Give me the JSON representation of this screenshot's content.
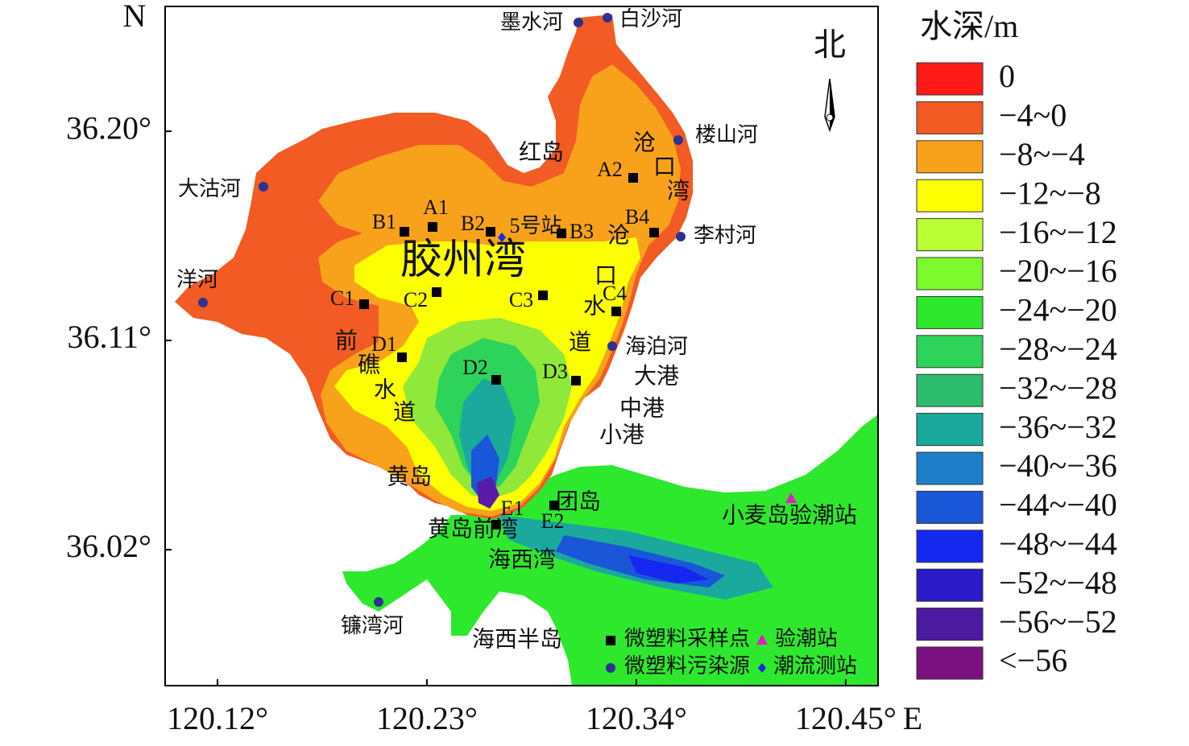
{
  "axes": {
    "x_label": "E",
    "y_label": "N",
    "xlim": [
      120.0925,
      120.467
    ],
    "ylim": [
      35.9615,
      36.2537
    ],
    "xticks": [
      {
        "value": 120.12,
        "label": "120.12°"
      },
      {
        "value": 120.23,
        "label": "120.23°"
      },
      {
        "value": 120.34,
        "label": "120.34°"
      },
      {
        "value": 120.45,
        "label": "120.45°"
      }
    ],
    "yticks": [
      {
        "value": 36.2,
        "label": "36.20°"
      },
      {
        "value": 36.11,
        "label": "36.11°"
      },
      {
        "value": 36.02,
        "label": "36.02°"
      }
    ]
  },
  "legend": {
    "title": "水深/m",
    "items": [
      {
        "label": "0",
        "color": "#ff1a1a"
      },
      {
        "label": "−4~0",
        "color": "#f25b23"
      },
      {
        "label": "−8~−4",
        "color": "#f8a21c"
      },
      {
        "label": "−12~−8",
        "color": "#fcff00"
      },
      {
        "label": "−16~−12",
        "color": "#baff33"
      },
      {
        "label": "−20~−16",
        "color": "#7cfa2c"
      },
      {
        "label": "−24~−20",
        "color": "#2ee82e"
      },
      {
        "label": "−28~−24",
        "color": "#2ed35a"
      },
      {
        "label": "−32~−28",
        "color": "#2dbb6e"
      },
      {
        "label": "−36~−32",
        "color": "#1aa99c"
      },
      {
        "label": "−40~−36",
        "color": "#1e7fc8"
      },
      {
        "label": "−44~−40",
        "color": "#1a56d8"
      },
      {
        "label": "−48~−44",
        "color": "#1428f0"
      },
      {
        "label": "−52~−48",
        "color": "#2a1ac8"
      },
      {
        "label": "−56~−52",
        "color": "#4a1aa0"
      },
      {
        "label": "<−56",
        "color": "#7b1080"
      }
    ]
  },
  "compass": "北",
  "bay_name": "胶州湾",
  "places": [
    "红岛",
    "大港",
    "中港",
    "小港",
    "黄岛",
    "团岛",
    "黄岛前湾",
    "海西湾",
    "海西半岛"
  ],
  "channels": [
    [
      "沧",
      "口",
      "湾"
    ],
    [
      "沧",
      "口",
      "水",
      "道"
    ],
    [
      "前",
      "礁",
      "水",
      "道"
    ]
  ],
  "rivers": [
    "墨水河",
    "白沙河",
    "楼山河",
    "李村河",
    "大沽河",
    "洋河",
    "海泊河",
    "镰湾河"
  ],
  "sampling_points": [
    "A1",
    "A2",
    "B1",
    "B2",
    "B3",
    "B4",
    "C1",
    "C2",
    "C3",
    "C4",
    "D1",
    "D2",
    "D3",
    "E1",
    "E2"
  ],
  "current_station": "5号站",
  "tide_station": "小麦岛验潮站",
  "key": {
    "sampling": "微塑料采样点",
    "tide": "验潮站",
    "source": "微塑料污染源",
    "current": "潮流测站"
  }
}
